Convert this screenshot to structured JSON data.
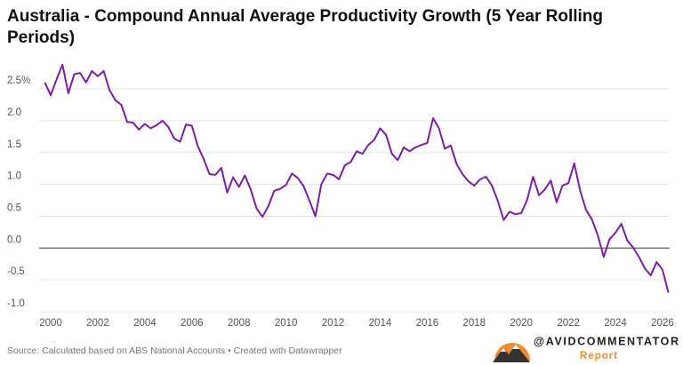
{
  "chart_data": {
    "type": "line",
    "title": "Australia - Compound Annual Average Productivity Growth (5 Year Rolling Periods)",
    "source": "Source: Calculated based on ABS National Accounts • Created with Datawrapper",
    "logo_text": "@AVIDCOMMENTATOR",
    "logo_subtext": "Report",
    "color": "#7b1fa2",
    "grid": true,
    "xlim": [
      1999.5,
      2026.3
    ],
    "xticks": [
      2000,
      2002,
      2004,
      2006,
      2008,
      2010,
      2012,
      2014,
      2016,
      2018,
      2020,
      2022,
      2024,
      2026
    ],
    "ylim": [
      -1,
      2.95
    ],
    "yticks": [
      {
        "value": -1,
        "label": "-1.0"
      },
      -0.5,
      {
        "value": 0,
        "label": "0.0"
      },
      0.5,
      {
        "value": 1,
        "label": "1.0"
      },
      1.5,
      {
        "value": 2,
        "label": "2.0"
      },
      {
        "value": 2.5,
        "label": "2.5%"
      }
    ],
    "x": [
      1999.75,
      2000,
      2000.25,
      2000.5,
      2000.75,
      2001,
      2001.25,
      2001.5,
      2001.75,
      2002,
      2002.25,
      2002.5,
      2002.75,
      2003,
      2003.25,
      2003.5,
      2003.75,
      2004,
      2004.25,
      2004.5,
      2004.75,
      2005,
      2005.25,
      2005.5,
      2005.75,
      2006,
      2006.25,
      2006.5,
      2006.75,
      2007,
      2007.25,
      2007.5,
      2007.75,
      2008,
      2008.25,
      2008.5,
      2008.75,
      2009,
      2009.25,
      2009.5,
      2009.75,
      2010,
      2010.25,
      2010.5,
      2010.75,
      2011,
      2011.25,
      2011.5,
      2011.75,
      2012,
      2012.25,
      2012.5,
      2012.75,
      2013,
      2013.25,
      2013.5,
      2013.75,
      2014,
      2014.25,
      2014.5,
      2014.75,
      2015,
      2015.25,
      2015.5,
      2015.75,
      2016,
      2016.25,
      2016.5,
      2016.75,
      2017,
      2017.25,
      2017.5,
      2017.75,
      2018,
      2018.25,
      2018.5,
      2018.75,
      2019,
      2019.25,
      2019.5,
      2019.75,
      2020,
      2020.25,
      2020.5,
      2020.75,
      2021,
      2021.25,
      2021.5,
      2021.75,
      2022,
      2022.25,
      2022.5,
      2022.75,
      2023,
      2023.25,
      2023.5,
      2023.75,
      2024,
      2024.25,
      2024.5,
      2024.75,
      2025,
      2025.25,
      2025.5,
      2025.75,
      2026,
      2026.25
    ],
    "values": [
      2.6,
      2.4,
      2.65,
      2.88,
      2.43,
      2.73,
      2.75,
      2.6,
      2.78,
      2.7,
      2.78,
      2.48,
      2.32,
      2.25,
      1.98,
      1.97,
      1.86,
      1.95,
      1.88,
      1.93,
      2.0,
      1.9,
      1.72,
      1.67,
      1.94,
      1.92,
      1.6,
      1.4,
      1.16,
      1.15,
      1.26,
      0.87,
      1.11,
      0.96,
      1.14,
      0.92,
      0.62,
      0.49,
      0.66,
      0.9,
      0.93,
      0.99,
      1.17,
      1.1,
      0.97,
      0.74,
      0.5,
      1.0,
      1.17,
      1.15,
      1.08,
      1.3,
      1.35,
      1.52,
      1.48,
      1.62,
      1.7,
      1.88,
      1.78,
      1.48,
      1.38,
      1.58,
      1.52,
      1.58,
      1.62,
      1.65,
      2.04,
      1.88,
      1.56,
      1.61,
      1.32,
      1.16,
      1.05,
      0.98,
      1.08,
      1.12,
      0.98,
      0.74,
      0.44,
      0.57,
      0.53,
      0.55,
      0.76,
      1.12,
      0.83,
      0.92,
      1.06,
      0.72,
      0.98,
      1.02,
      1.33,
      0.9,
      0.6,
      0.45,
      0.2,
      -0.14,
      0.14,
      0.24,
      0.38,
      0.12,
      0.01,
      -0.14,
      -0.32,
      -0.43,
      -0.22,
      -0.34,
      -0.7
    ]
  }
}
